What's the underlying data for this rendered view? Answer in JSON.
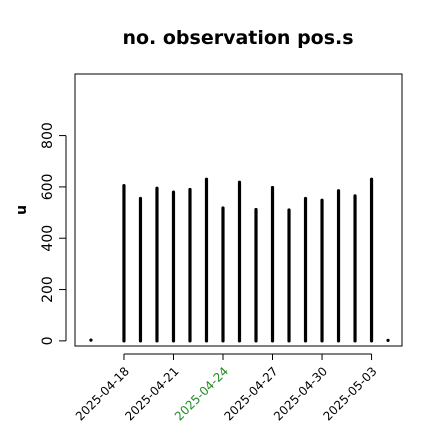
{
  "chart_data": {
    "type": "bar",
    "title": "no. observation pos.s",
    "xlabel": "",
    "ylabel": "n",
    "ylim": [
      -20,
      1040
    ],
    "yticks": [
      0,
      200,
      400,
      600,
      800
    ],
    "grid": false,
    "legend": "none",
    "x_tick_labels": [
      {
        "label": "2025-04-18",
        "x": 2,
        "color": "#000000"
      },
      {
        "label": "2025-04-21",
        "x": 5,
        "color": "#000000"
      },
      {
        "label": "2025-04-24",
        "x": 8,
        "color": "#228B22"
      },
      {
        "label": "2025-04-27",
        "x": 11,
        "color": "#000000"
      },
      {
        "label": "2025-04-30",
        "x": 14,
        "color": "#000000"
      },
      {
        "label": "2025-05-03",
        "x": 17,
        "color": "#000000"
      }
    ],
    "x": [
      0,
      2,
      3,
      4,
      5,
      6,
      7,
      8,
      9,
      10,
      11,
      12,
      13,
      14,
      15,
      16,
      17,
      18
    ],
    "values": [
      3,
      605,
      555,
      595,
      580,
      590,
      630,
      518,
      618,
      512,
      598,
      510,
      555,
      548,
      585,
      565,
      630,
      2
    ],
    "colors": {
      "bars": "#000000",
      "axis": "#000000",
      "highlight": "#228B22"
    }
  }
}
